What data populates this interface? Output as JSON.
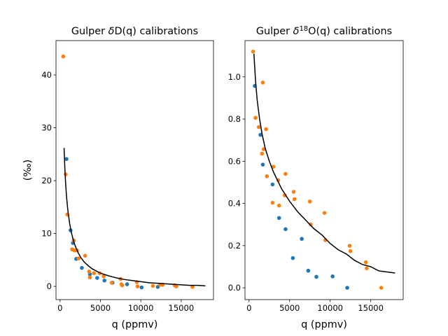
{
  "chart_data": [
    {
      "type": "scatter",
      "title_prefix": "Gulper ",
      "title_symbol": "δ",
      "title_sup": "",
      "title_suffix": "D(q) calibrations",
      "xlabel": "q (ppmv)",
      "ylabel": "(‰)",
      "xlim": [
        -500,
        19000
      ],
      "ylim": [
        -2.5,
        46.5
      ],
      "xticks": [
        0,
        5000,
        10000,
        15000
      ],
      "yticks": [
        0,
        10,
        20,
        30,
        40
      ],
      "series": [
        {
          "color": "#1f77b4",
          "points": [
            [
              800,
              24.1
            ],
            [
              1300,
              10.6
            ],
            [
              1600,
              8.2
            ],
            [
              2000,
              5.2
            ],
            [
              2700,
              3.5
            ],
            [
              3700,
              2.3
            ],
            [
              4600,
              1.6
            ],
            [
              5500,
              1.1
            ],
            [
              6500,
              0.7
            ],
            [
              8300,
              0.4
            ],
            [
              10100,
              -0.2
            ],
            [
              12100,
              -0.1
            ]
          ]
        },
        {
          "color": "#ff7f0e",
          "points": [
            [
              400,
              43.5
            ],
            [
              700,
              21.2
            ],
            [
              900,
              13.6
            ],
            [
              1500,
              7
            ],
            [
              1700,
              8.7
            ],
            [
              1800,
              6.8
            ],
            [
              2100,
              6.8
            ],
            [
              2300,
              5.3
            ],
            [
              3100,
              5.8
            ],
            [
              3600,
              2.8
            ],
            [
              3700,
              1.7
            ],
            [
              4200,
              2.5
            ],
            [
              4900,
              2.5
            ],
            [
              5400,
              1.9
            ],
            [
              6400,
              0.7
            ],
            [
              7500,
              1.4
            ],
            [
              7600,
              0.4
            ],
            [
              7700,
              0.2
            ],
            [
              9500,
              0.8
            ],
            [
              9600,
              0
            ],
            [
              11500,
              0.1
            ],
            [
              12400,
              0.3
            ],
            [
              12700,
              0.3
            ],
            [
              14200,
              0.2
            ],
            [
              14400,
              0
            ],
            [
              16400,
              -0.1
            ]
          ]
        }
      ],
      "fit": {
        "color": "#000000",
        "points": [
          [
            500,
            26.2
          ],
          [
            600,
            22.2
          ],
          [
            700,
            19.3
          ],
          [
            800,
            17.1
          ],
          [
            900,
            15.4
          ],
          [
            1000,
            14
          ],
          [
            1200,
            11.8
          ],
          [
            1400,
            10.2
          ],
          [
            1600,
            9
          ],
          [
            1800,
            8
          ],
          [
            2000,
            7.2
          ],
          [
            2300,
            6.2
          ],
          [
            2600,
            5.4
          ],
          [
            3000,
            4.6
          ],
          [
            3500,
            3.9
          ],
          [
            4000,
            3.3
          ],
          [
            4500,
            2.9
          ],
          [
            5000,
            2.5
          ],
          [
            6000,
            2
          ],
          [
            7000,
            1.6
          ],
          [
            8000,
            1.3
          ],
          [
            9000,
            1.1
          ],
          [
            10000,
            0.9
          ],
          [
            11000,
            0.7
          ],
          [
            12000,
            0.6
          ],
          [
            13000,
            0.5
          ],
          [
            14000,
            0.4
          ],
          [
            15000,
            0.3
          ],
          [
            16000,
            0.2
          ],
          [
            17000,
            0.2
          ],
          [
            18000,
            0.1
          ]
        ]
      }
    },
    {
      "type": "scatter",
      "title_prefix": "Gulper ",
      "title_symbol": "δ",
      "title_sup": "18",
      "title_suffix": "O(q) calibrations",
      "xlabel": "q (ppmv)",
      "ylabel": "",
      "xlim": [
        -500,
        19000
      ],
      "ylim": [
        -0.056,
        1.172
      ],
      "xticks": [
        0,
        5000,
        10000,
        15000
      ],
      "yticks": [
        0.0,
        0.2,
        0.4,
        0.6,
        0.8,
        1.0
      ],
      "series": [
        {
          "color": "#1f77b4",
          "points": [
            [
              700,
              0.957
            ],
            [
              1400,
              0.725
            ],
            [
              1700,
              0.584
            ],
            [
              2900,
              0.49
            ],
            [
              3700,
              0.331
            ],
            [
              4500,
              0.278
            ],
            [
              5400,
              0.141
            ],
            [
              6500,
              0.232
            ],
            [
              7300,
              0.081
            ],
            [
              8300,
              0.052
            ],
            [
              10300,
              0.054
            ],
            [
              12100,
              0
            ]
          ]
        },
        {
          "color": "#ff7f0e",
          "points": [
            [
              500,
              1.12
            ],
            [
              800,
              0.806
            ],
            [
              1200,
              0.762
            ],
            [
              1600,
              0.636
            ],
            [
              1700,
              0.973
            ],
            [
              1800,
              0.657
            ],
            [
              2100,
              0.752
            ],
            [
              2200,
              0.529
            ],
            [
              2900,
              0.403
            ],
            [
              3000,
              0.574
            ],
            [
              3600,
              0.51
            ],
            [
              3700,
              0.39
            ],
            [
              4400,
              0.438
            ],
            [
              4500,
              0.54
            ],
            [
              5500,
              0.455
            ],
            [
              5600,
              0.42
            ],
            [
              7500,
              0.409
            ],
            [
              7600,
              0.3
            ],
            [
              9300,
              0.355
            ],
            [
              9400,
              0.226
            ],
            [
              12400,
              0.199
            ],
            [
              12500,
              0.174
            ],
            [
              14400,
              0.121
            ],
            [
              14500,
              0.092
            ],
            [
              16300,
              0
            ]
          ]
        }
      ],
      "fit": {
        "color": "#000000",
        "points": [
          [
            600,
            1.11
          ],
          [
            800,
            0.98
          ],
          [
            1000,
            0.89
          ],
          [
            1300,
            0.8
          ],
          [
            1600,
            0.73
          ],
          [
            2000,
            0.66
          ],
          [
            2500,
            0.6
          ],
          [
            3000,
            0.55
          ],
          [
            3500,
            0.51
          ],
          [
            4000,
            0.47
          ],
          [
            5000,
            0.41
          ],
          [
            6000,
            0.36
          ],
          [
            7000,
            0.32
          ],
          [
            8000,
            0.28
          ],
          [
            9000,
            0.25
          ],
          [
            10000,
            0.21
          ],
          [
            11000,
            0.18
          ],
          [
            12000,
            0.16
          ],
          [
            13000,
            0.13
          ],
          [
            14000,
            0.11
          ],
          [
            15000,
            0.1
          ],
          [
            16000,
            0.08
          ],
          [
            17000,
            0.075
          ],
          [
            18000,
            0.07
          ]
        ]
      }
    }
  ]
}
